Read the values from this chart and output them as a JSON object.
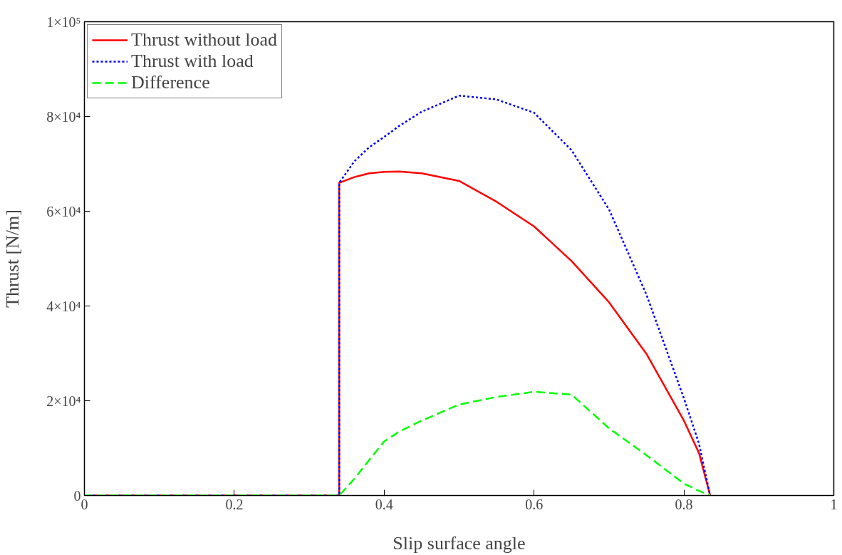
{
  "chart_data": {
    "type": "line",
    "xlabel": "Slip surface angle",
    "ylabel": "Thrust [N/m]",
    "x": [
      0,
      0.34,
      0.34,
      0.36,
      0.38,
      0.4,
      0.42,
      0.45,
      0.5,
      0.55,
      0.6,
      0.65,
      0.7,
      0.75,
      0.8,
      0.82,
      0.835
    ],
    "series": [
      {
        "name": "Thrust without load",
        "color": "#ff0000",
        "line_style": "solid",
        "values": [
          0,
          0,
          66000,
          67200,
          68000,
          68300,
          68400,
          68000,
          66400,
          62000,
          56800,
          49500,
          40800,
          29900,
          15800,
          9000,
          0
        ]
      },
      {
        "name": "Thrust with load",
        "color": "#0000ff",
        "line_style": "dotted",
        "values": [
          0,
          0,
          66000,
          70500,
          73500,
          75700,
          78000,
          81000,
          84400,
          83600,
          80800,
          72900,
          60400,
          42400,
          20500,
          11000,
          0
        ]
      },
      {
        "name": "Difference",
        "color": "#00ff00",
        "line_style": "dashed",
        "values": [
          0,
          0,
          0,
          3500,
          7500,
          11400,
          13500,
          15800,
          19200,
          20800,
          21900,
          21300,
          14200,
          8500,
          2500,
          1000,
          0
        ]
      }
    ],
    "xlim": [
      0,
      1
    ],
    "ylim": [
      0,
      100000
    ],
    "xticks": [
      0,
      0.2,
      0.4,
      0.6,
      0.8,
      1
    ],
    "yticks": [
      0,
      {
        "value": 20000,
        "label": "2×10⁴"
      },
      {
        "value": 40000,
        "label": "4×10⁴"
      },
      {
        "value": 60000,
        "label": "6×10⁴"
      },
      {
        "value": 80000,
        "label": "8×10⁴"
      },
      {
        "value": 100000,
        "label": "1×10⁵"
      }
    ],
    "grid": false,
    "legend": "top left"
  }
}
